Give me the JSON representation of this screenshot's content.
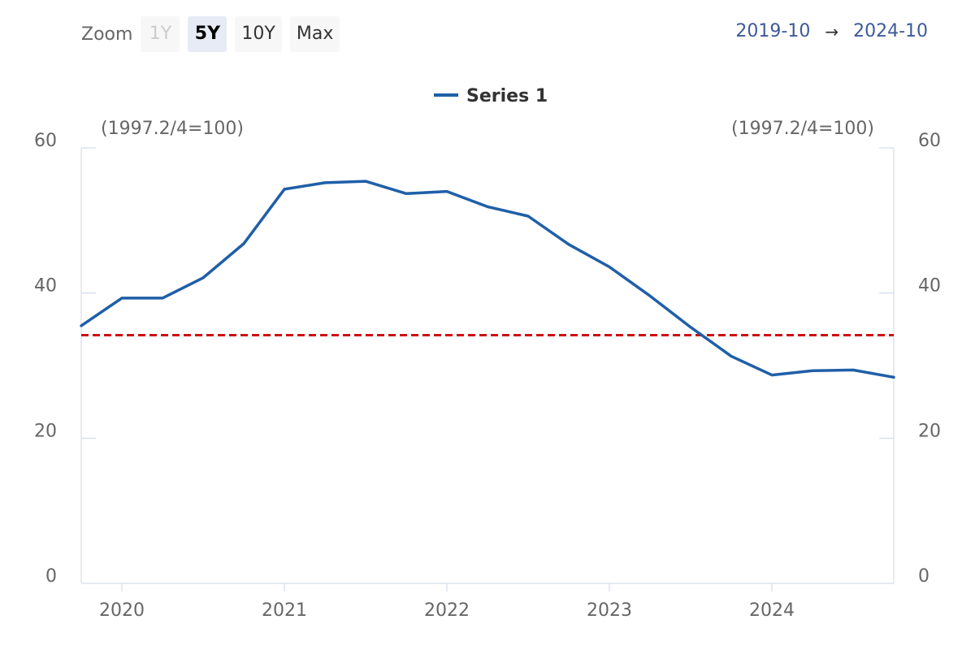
{
  "zoom": {
    "label": "Zoom",
    "buttons": [
      {
        "label": "1Y",
        "state": "disabled"
      },
      {
        "label": "5Y",
        "state": "selected"
      },
      {
        "label": "10Y",
        "state": "normal"
      },
      {
        "label": "Max",
        "state": "normal"
      }
    ]
  },
  "range": {
    "from": "2019-10",
    "arrow": "→",
    "to": "2024-10"
  },
  "colors": {
    "series": "#1f5fa8",
    "reference_line": "#cc1111",
    "axis_line": "#ccd6eb",
    "range_text": "#3d5a99"
  },
  "chart_data": {
    "type": "line",
    "x_start": "2019-10",
    "x_end": "2024-10",
    "x_ticks": [
      "2020",
      "2021",
      "2022",
      "2023",
      "2024"
    ],
    "ylim": [
      0,
      60
    ],
    "y_ticks": [
      0,
      20,
      40,
      60
    ],
    "y_axis_left_title": "(1997.2/4=100)",
    "y_axis_right_title": "(1997.2/4=100)",
    "legend": {
      "position": "top-center"
    },
    "series": [
      {
        "name": "Series 1",
        "x": [
          "2019-10",
          "2020-01",
          "2020-04",
          "2020-07",
          "2020-10",
          "2021-01",
          "2021-04",
          "2021-07",
          "2021-10",
          "2022-01",
          "2022-04",
          "2022-07",
          "2022-10",
          "2023-01",
          "2023-04",
          "2023-07",
          "2023-10",
          "2024-01",
          "2024-04",
          "2024-07",
          "2024-10"
        ],
        "values": [
          35.5,
          39.3,
          39.3,
          42.1,
          46.8,
          54.3,
          55.2,
          55.4,
          53.7,
          54.0,
          51.9,
          50.6,
          46.7,
          43.6,
          39.6,
          35.3,
          31.3,
          28.7,
          29.3,
          29.4,
          28.4
        ]
      }
    ],
    "reference_line": {
      "value": 34.2,
      "style": "dashed"
    }
  }
}
